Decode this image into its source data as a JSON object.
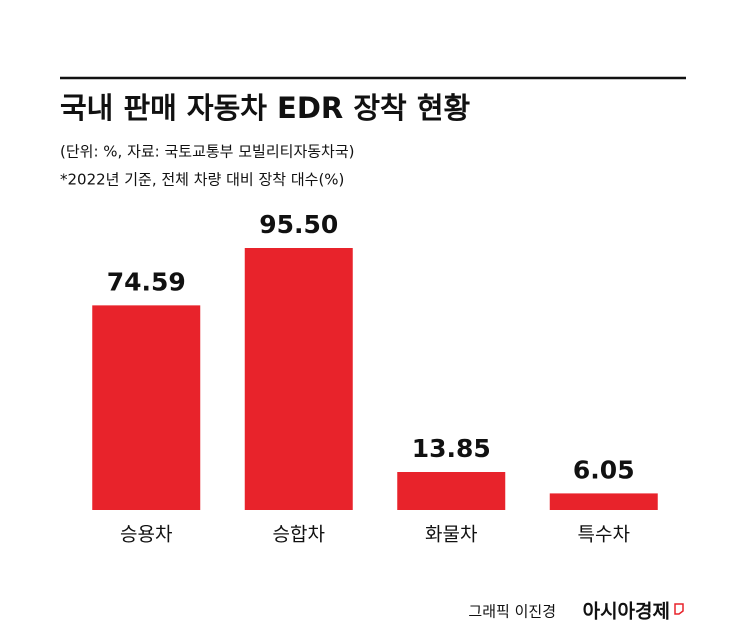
{
  "chart_data": {
    "type": "bar",
    "title": "국내 판매 자동차 EDR 장착 현황",
    "subtitle": [
      "(단위: %, 자료: 국토교통부 모빌리티자동차국)",
      "*2022년 기준, 전체 차량 대비 장착 대수(%)"
    ],
    "categories": [
      "승용차",
      "승합차",
      "화물차",
      "특수차"
    ],
    "values": [
      74.59,
      95.5,
      13.85,
      6.05
    ],
    "value_labels": [
      "74.59",
      "95.50",
      "13.85",
      "6.05"
    ],
    "color": "#e8232b",
    "credit": "그래픽 이진경",
    "source": "아시아경제"
  }
}
